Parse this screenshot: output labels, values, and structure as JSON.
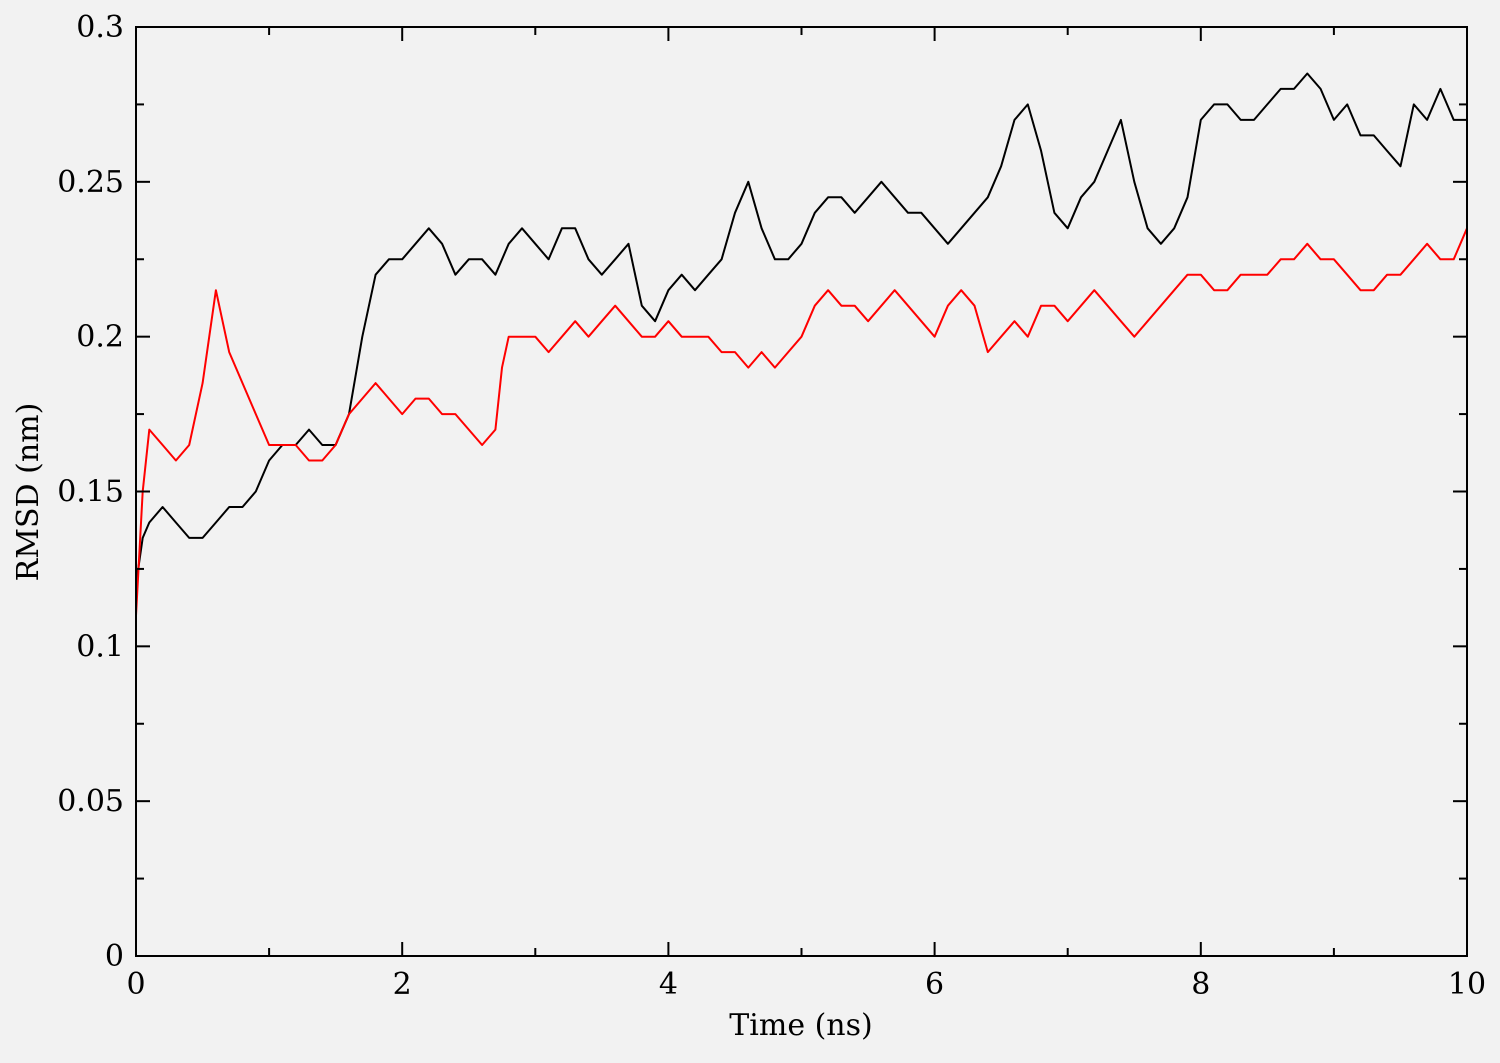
{
  "chart_data": {
    "type": "line",
    "title": "",
    "xlabel": "Time (ns)",
    "ylabel": "RMSD (nm)",
    "xlim": [
      0,
      10
    ],
    "ylim": [
      0,
      0.3
    ],
    "x_ticks": [
      0,
      2,
      4,
      6,
      8,
      10
    ],
    "x_tick_labels": [
      "0",
      "2",
      "4",
      "6",
      "8",
      "10"
    ],
    "x_minor_step": 1,
    "y_ticks": [
      0,
      0.05,
      0.1,
      0.15,
      0.2,
      0.25,
      0.3
    ],
    "y_tick_labels": [
      "0",
      "0.05",
      "0.1",
      "0.15",
      "0.2",
      "0.25",
      "0.3"
    ],
    "y_minor_step": 0.025,
    "grid": false,
    "legend": "none",
    "background": "#f2f2f2",
    "series": [
      {
        "color": "#000000",
        "x": [
          0,
          0.05,
          0.1,
          0.2,
          0.3,
          0.4,
          0.5,
          0.6,
          0.7,
          0.8,
          0.9,
          1.0,
          1.1,
          1.2,
          1.3,
          1.4,
          1.5,
          1.6,
          1.7,
          1.8,
          1.9,
          2.0,
          2.1,
          2.2,
          2.3,
          2.4,
          2.5,
          2.6,
          2.7,
          2.8,
          2.9,
          3.0,
          3.1,
          3.2,
          3.3,
          3.4,
          3.5,
          3.6,
          3.7,
          3.8,
          3.9,
          4.0,
          4.1,
          4.2,
          4.3,
          4.4,
          4.5,
          4.6,
          4.7,
          4.8,
          4.9,
          5.0,
          5.1,
          5.2,
          5.3,
          5.4,
          5.5,
          5.6,
          5.7,
          5.8,
          5.9,
          6.0,
          6.1,
          6.2,
          6.3,
          6.4,
          6.5,
          6.6,
          6.7,
          6.8,
          6.9,
          7.0,
          7.1,
          7.2,
          7.3,
          7.4,
          7.5,
          7.6,
          7.7,
          7.8,
          7.9,
          8.0,
          8.1,
          8.2,
          8.3,
          8.4,
          8.5,
          8.6,
          8.7,
          8.8,
          8.9,
          9.0,
          9.1,
          9.2,
          9.3,
          9.4,
          9.5,
          9.6,
          9.7,
          9.8,
          9.9,
          10.0
        ],
        "values": [
          0.12,
          0.135,
          0.14,
          0.145,
          0.14,
          0.135,
          0.135,
          0.14,
          0.145,
          0.145,
          0.15,
          0.16,
          0.165,
          0.165,
          0.17,
          0.165,
          0.165,
          0.175,
          0.2,
          0.22,
          0.225,
          0.225,
          0.23,
          0.235,
          0.23,
          0.22,
          0.225,
          0.225,
          0.22,
          0.23,
          0.235,
          0.23,
          0.225,
          0.235,
          0.235,
          0.225,
          0.22,
          0.225,
          0.23,
          0.21,
          0.205,
          0.215,
          0.22,
          0.215,
          0.22,
          0.225,
          0.24,
          0.25,
          0.235,
          0.225,
          0.225,
          0.23,
          0.24,
          0.245,
          0.245,
          0.24,
          0.245,
          0.25,
          0.245,
          0.24,
          0.24,
          0.235,
          0.23,
          0.235,
          0.24,
          0.245,
          0.255,
          0.27,
          0.275,
          0.26,
          0.24,
          0.235,
          0.245,
          0.25,
          0.26,
          0.27,
          0.25,
          0.235,
          0.23,
          0.235,
          0.245,
          0.27,
          0.275,
          0.275,
          0.27,
          0.27,
          0.275,
          0.28,
          0.28,
          0.285,
          0.28,
          0.27,
          0.275,
          0.265,
          0.265,
          0.26,
          0.255,
          0.275,
          0.27,
          0.28,
          0.27,
          0.27
        ]
      },
      {
        "color": "#ff0000",
        "x": [
          0,
          0.05,
          0.1,
          0.2,
          0.3,
          0.4,
          0.5,
          0.6,
          0.7,
          0.8,
          0.9,
          1.0,
          1.1,
          1.2,
          1.3,
          1.4,
          1.5,
          1.6,
          1.7,
          1.8,
          1.9,
          2.0,
          2.1,
          2.2,
          2.3,
          2.4,
          2.5,
          2.6,
          2.7,
          2.75,
          2.8,
          2.9,
          3.0,
          3.1,
          3.2,
          3.3,
          3.4,
          3.5,
          3.6,
          3.7,
          3.8,
          3.9,
          4.0,
          4.1,
          4.2,
          4.3,
          4.4,
          4.5,
          4.6,
          4.7,
          4.8,
          4.9,
          5.0,
          5.1,
          5.2,
          5.3,
          5.4,
          5.5,
          5.6,
          5.7,
          5.8,
          5.9,
          6.0,
          6.1,
          6.2,
          6.3,
          6.4,
          6.5,
          6.6,
          6.7,
          6.8,
          6.9,
          7.0,
          7.1,
          7.2,
          7.3,
          7.4,
          7.5,
          7.6,
          7.7,
          7.8,
          7.9,
          8.0,
          8.1,
          8.2,
          8.3,
          8.4,
          8.5,
          8.6,
          8.7,
          8.8,
          8.9,
          9.0,
          9.1,
          9.2,
          9.3,
          9.4,
          9.5,
          9.6,
          9.7,
          9.8,
          9.9,
          10.0
        ],
        "values": [
          0.11,
          0.15,
          0.17,
          0.165,
          0.16,
          0.165,
          0.185,
          0.215,
          0.195,
          0.185,
          0.175,
          0.165,
          0.165,
          0.165,
          0.16,
          0.16,
          0.165,
          0.175,
          0.18,
          0.185,
          0.18,
          0.175,
          0.18,
          0.18,
          0.175,
          0.175,
          0.17,
          0.165,
          0.17,
          0.19,
          0.2,
          0.2,
          0.2,
          0.195,
          0.2,
          0.205,
          0.2,
          0.205,
          0.21,
          0.205,
          0.2,
          0.2,
          0.205,
          0.2,
          0.2,
          0.2,
          0.195,
          0.195,
          0.19,
          0.195,
          0.19,
          0.195,
          0.2,
          0.21,
          0.215,
          0.21,
          0.21,
          0.205,
          0.21,
          0.215,
          0.21,
          0.205,
          0.2,
          0.21,
          0.215,
          0.21,
          0.195,
          0.2,
          0.205,
          0.2,
          0.21,
          0.21,
          0.205,
          0.21,
          0.215,
          0.21,
          0.205,
          0.2,
          0.205,
          0.21,
          0.215,
          0.22,
          0.22,
          0.215,
          0.215,
          0.22,
          0.22,
          0.22,
          0.225,
          0.225,
          0.23,
          0.225,
          0.225,
          0.22,
          0.215,
          0.215,
          0.22,
          0.22,
          0.225,
          0.23,
          0.225,
          0.225,
          0.235
        ]
      }
    ]
  }
}
